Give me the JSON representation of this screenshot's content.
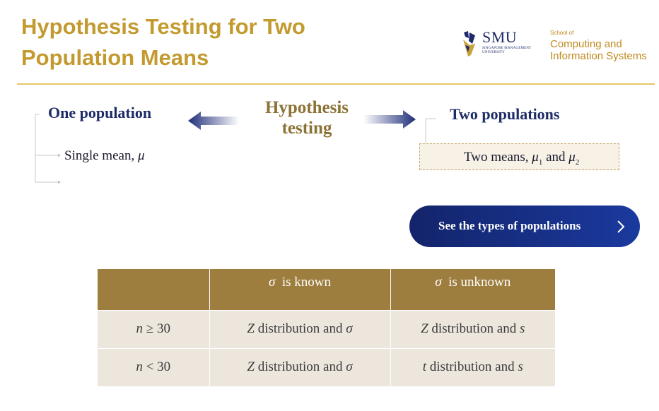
{
  "header": {
    "title_line1": "Hypothesis Testing for Two",
    "title_line2": "Population Means"
  },
  "logo": {
    "smu": "SMU",
    "smu_sub": "SINGAPORE MANAGEMENT UNIVERSITY",
    "school_small": "School of",
    "school_line1": "Computing and",
    "school_line2": "Information Systems"
  },
  "diagram": {
    "one_population": "One population",
    "hypothesis_line1": "Hypothesis",
    "hypothesis_line2": "testing",
    "two_populations": "Two populations",
    "single_mean_text": "Single mean, ",
    "single_mean_symbol": "μ",
    "two_means_text": "Two means, ",
    "mu": "μ",
    "sub1": "1",
    "and": " and ",
    "sub2": "2"
  },
  "button": {
    "label": "See the types of populations",
    "chevron": "chevron-right-icon"
  },
  "table": {
    "headers": [
      "",
      "is known",
      "is unknown"
    ],
    "sigma": "σ",
    "rows": [
      {
        "n_symbol": "n",
        "n_cond": " ≥ 30",
        "known_var": "Z",
        "known_text": " distribution and ",
        "known_sym": "σ",
        "unknown_var": "Z",
        "unknown_text": " distribution and ",
        "unknown_sym": "s"
      },
      {
        "n_symbol": "n",
        "n_cond": " < 30",
        "known_var": "Z",
        "known_text": " distribution and ",
        "known_sym": "σ",
        "unknown_var": "t",
        "unknown_text": " distribution and ",
        "unknown_sym": "s"
      }
    ]
  },
  "colors": {
    "title": "#c39a2f",
    "navy": "#1d2b66",
    "gold_text": "#8b7336",
    "table_header": "#9d7e3f",
    "table_cell": "#ece6dd",
    "button": "#13246b"
  }
}
